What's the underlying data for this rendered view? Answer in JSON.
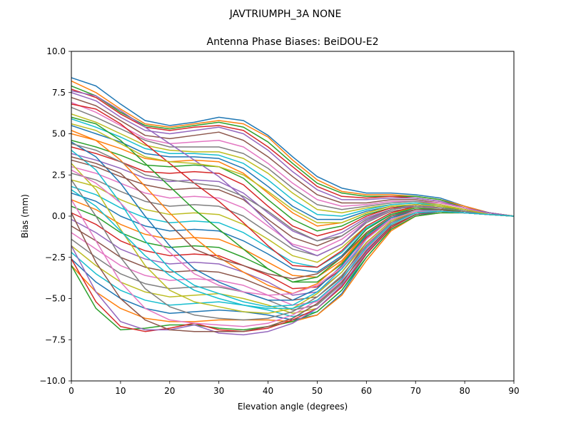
{
  "suptitle": "JAVTRIUMPH_3A   NONE",
  "chart_data": {
    "type": "line",
    "title": "Antenna Phase Biases: BeiDOU-E2",
    "xlabel": "Elevation angle (degrees)",
    "ylabel": "Bias (mm)",
    "xlim": [
      0,
      90
    ],
    "ylim": [
      -10,
      10
    ],
    "xticks": [
      0,
      10,
      20,
      30,
      40,
      50,
      60,
      70,
      80,
      90
    ],
    "yticks": [
      -10.0,
      -7.5,
      -5.0,
      -2.5,
      0.0,
      2.5,
      5.0,
      7.5,
      10.0
    ],
    "xtick_labels": [
      "0",
      "10",
      "20",
      "30",
      "40",
      "50",
      "60",
      "70",
      "80",
      "90"
    ],
    "ytick_labels": [
      "−10.0",
      "−7.5",
      "−5.0",
      "−2.5",
      "0.0",
      "2.5",
      "5.0",
      "7.5",
      "10.0"
    ],
    "grid": false,
    "colors": [
      "#1f77b4",
      "#ff7f0e",
      "#2ca02c",
      "#d62728",
      "#9467bd",
      "#8c564b",
      "#e377c2",
      "#7f7f7f",
      "#bcbd22",
      "#17becf"
    ],
    "x": [
      0,
      5,
      10,
      15,
      20,
      25,
      30,
      35,
      40,
      45,
      50,
      55,
      60,
      65,
      70,
      75,
      80,
      85,
      90
    ],
    "series": [
      {
        "values": [
          8.4,
          7.9,
          6.8,
          5.8,
          5.5,
          5.7,
          6.0,
          5.8,
          4.9,
          3.6,
          2.4,
          1.7,
          1.4,
          1.4,
          1.3,
          1.1,
          0.6,
          0.2,
          0.0
        ]
      },
      {
        "values": [
          8.2,
          7.5,
          6.5,
          5.6,
          5.4,
          5.6,
          5.8,
          5.6,
          4.8,
          3.4,
          2.2,
          1.5,
          1.3,
          1.3,
          1.2,
          1.0,
          0.6,
          0.2,
          0.0
        ]
      },
      {
        "values": [
          7.9,
          7.3,
          6.3,
          5.5,
          5.3,
          5.5,
          5.7,
          5.4,
          4.5,
          3.2,
          2.0,
          1.4,
          1.2,
          1.2,
          1.2,
          1.0,
          0.5,
          0.2,
          0.0
        ]
      },
      {
        "values": [
          7.7,
          7.2,
          6.2,
          5.4,
          5.2,
          5.4,
          5.5,
          5.2,
          4.2,
          3.0,
          1.8,
          1.2,
          1.1,
          1.2,
          1.1,
          0.9,
          0.5,
          0.2,
          0.0
        ]
      },
      {
        "values": [
          7.5,
          7.0,
          6.0,
          5.2,
          5.0,
          5.2,
          5.4,
          5.0,
          4.0,
          2.7,
          1.6,
          1.0,
          1.0,
          1.1,
          1.1,
          0.9,
          0.5,
          0.2,
          0.0
        ]
      },
      {
        "values": [
          7.2,
          6.7,
          5.8,
          4.9,
          4.7,
          4.9,
          5.1,
          4.6,
          3.6,
          2.4,
          1.3,
          0.8,
          0.8,
          1.0,
          1.0,
          0.8,
          0.5,
          0.1,
          0.0
        ]
      },
      {
        "values": [
          6.9,
          6.3,
          5.5,
          4.7,
          4.4,
          4.5,
          4.6,
          4.2,
          3.2,
          2.0,
          1.0,
          0.6,
          0.7,
          0.9,
          0.9,
          0.8,
          0.5,
          0.1,
          0.0
        ]
      },
      {
        "values": [
          6.6,
          6.0,
          5.3,
          4.6,
          4.2,
          4.2,
          4.2,
          3.8,
          2.9,
          1.7,
          0.7,
          0.4,
          0.6,
          0.8,
          0.9,
          0.7,
          0.4,
          0.1,
          0.0
        ]
      },
      {
        "values": [
          6.2,
          5.7,
          5.0,
          4.3,
          4.0,
          3.9,
          3.9,
          3.5,
          2.6,
          1.4,
          0.4,
          0.2,
          0.5,
          0.7,
          0.8,
          0.7,
          0.4,
          0.1,
          0.0
        ]
      },
      {
        "values": [
          5.9,
          5.4,
          4.8,
          4.1,
          3.8,
          3.8,
          3.7,
          3.2,
          2.2,
          1.0,
          0.1,
          0.0,
          0.4,
          0.7,
          0.8,
          0.6,
          0.4,
          0.1,
          0.0
        ]
      },
      {
        "values": [
          5.5,
          5.0,
          4.5,
          3.8,
          3.6,
          3.6,
          3.5,
          2.9,
          1.8,
          0.6,
          -0.2,
          -0.2,
          0.3,
          0.6,
          0.7,
          0.6,
          0.4,
          0.1,
          0.0
        ]
      },
      {
        "values": [
          5.0,
          4.6,
          4.1,
          3.5,
          3.3,
          3.4,
          3.3,
          2.6,
          1.4,
          0.2,
          -0.6,
          -0.4,
          0.2,
          0.6,
          0.7,
          0.6,
          0.4,
          0.1,
          0.0
        ]
      },
      {
        "values": [
          4.6,
          4.2,
          3.7,
          3.1,
          3.0,
          3.1,
          3.0,
          2.3,
          1.0,
          -0.2,
          -0.9,
          -0.6,
          0.1,
          0.5,
          0.7,
          0.6,
          0.3,
          0.1,
          0.0
        ]
      },
      {
        "values": [
          4.2,
          3.8,
          3.3,
          2.7,
          2.6,
          2.7,
          2.6,
          1.9,
          0.6,
          -0.6,
          -1.2,
          -0.8,
          0.0,
          0.5,
          0.6,
          0.5,
          0.3,
          0.1,
          0.0
        ]
      },
      {
        "values": [
          3.8,
          3.4,
          2.9,
          2.3,
          2.1,
          2.2,
          2.1,
          1.4,
          0.2,
          -0.9,
          -1.5,
          -1.0,
          -0.1,
          0.4,
          0.6,
          0.5,
          0.3,
          0.1,
          0.0
        ]
      },
      {
        "values": [
          3.4,
          3.0,
          2.4,
          1.9,
          1.6,
          1.7,
          1.6,
          1.0,
          -0.2,
          -1.3,
          -1.8,
          -1.2,
          -0.2,
          0.4,
          0.6,
          0.5,
          0.3,
          0.1,
          0.0
        ]
      },
      {
        "values": [
          3.0,
          2.6,
          2.0,
          1.4,
          1.1,
          1.2,
          1.1,
          0.5,
          -0.6,
          -1.7,
          -2.1,
          -1.4,
          -0.3,
          0.3,
          0.5,
          0.5,
          0.3,
          0.1,
          0.0
        ]
      },
      {
        "values": [
          2.6,
          2.2,
          1.5,
          0.9,
          0.6,
          0.7,
          0.6,
          0.0,
          -1.0,
          -2.0,
          -2.4,
          -1.7,
          -0.4,
          0.3,
          0.5,
          0.4,
          0.3,
          0.1,
          0.0
        ]
      },
      {
        "values": [
          2.2,
          1.8,
          1.0,
          0.4,
          0.1,
          0.2,
          0.1,
          -0.5,
          -1.4,
          -2.4,
          -2.8,
          -1.9,
          -0.6,
          0.2,
          0.5,
          0.4,
          0.3,
          0.1,
          0.0
        ]
      },
      {
        "values": [
          1.8,
          1.3,
          0.5,
          -0.1,
          -0.4,
          -0.3,
          -0.4,
          -1.0,
          -1.9,
          -2.8,
          -3.1,
          -2.2,
          -0.7,
          0.1,
          0.4,
          0.4,
          0.3,
          0.1,
          0.0
        ]
      },
      {
        "values": [
          1.4,
          0.9,
          0.0,
          -0.6,
          -0.9,
          -0.8,
          -0.9,
          -1.5,
          -2.3,
          -3.2,
          -3.4,
          -2.4,
          -0.8,
          0.1,
          0.4,
          0.4,
          0.3,
          0.1,
          0.0
        ]
      },
      {
        "values": [
          1.0,
          0.4,
          -0.5,
          -1.1,
          -1.4,
          -1.3,
          -1.4,
          -2.0,
          -2.8,
          -3.6,
          -3.7,
          -2.7,
          -1.0,
          0.0,
          0.4,
          0.4,
          0.2,
          0.1,
          0.0
        ]
      },
      {
        "values": [
          0.6,
          0.0,
          -1.0,
          -1.6,
          -1.9,
          -1.8,
          -1.9,
          -2.5,
          -3.2,
          -4.0,
          -4.0,
          -2.9,
          -1.1,
          -0.1,
          0.3,
          0.3,
          0.2,
          0.1,
          0.0
        ]
      },
      {
        "values": [
          0.2,
          -0.5,
          -1.5,
          -2.1,
          -2.4,
          -2.3,
          -2.4,
          -3.0,
          -3.6,
          -4.4,
          -4.3,
          -3.2,
          -1.3,
          -0.2,
          0.3,
          0.3,
          0.2,
          0.1,
          0.0
        ]
      },
      {
        "values": [
          -0.2,
          -1.0,
          -2.0,
          -2.6,
          -2.9,
          -2.8,
          -2.9,
          -3.4,
          -4.0,
          -4.8,
          -4.6,
          -3.4,
          -1.4,
          -0.2,
          0.3,
          0.3,
          0.2,
          0.1,
          0.0
        ]
      },
      {
        "values": [
          -0.6,
          -1.5,
          -2.5,
          -3.1,
          -3.4,
          -3.3,
          -3.4,
          -3.8,
          -4.4,
          -5.1,
          -4.9,
          -3.7,
          -1.6,
          -0.3,
          0.2,
          0.3,
          0.2,
          0.1,
          0.0
        ]
      },
      {
        "values": [
          -1.0,
          -2.0,
          -3.0,
          -3.6,
          -3.9,
          -3.8,
          -3.9,
          -4.2,
          -4.8,
          -5.4,
          -5.2,
          -3.9,
          -1.7,
          -0.4,
          0.2,
          0.3,
          0.2,
          0.1,
          0.0
        ]
      },
      {
        "values": [
          -1.4,
          -2.5,
          -3.5,
          -4.1,
          -4.4,
          -4.3,
          -4.3,
          -4.6,
          -5.1,
          -5.7,
          -5.4,
          -4.1,
          -1.9,
          -0.5,
          0.2,
          0.3,
          0.2,
          0.1,
          0.0
        ]
      },
      {
        "values": [
          -1.8,
          -3.0,
          -4.0,
          -4.6,
          -4.9,
          -4.8,
          -4.7,
          -5.0,
          -5.4,
          -5.9,
          -5.6,
          -4.3,
          -2.1,
          -0.6,
          0.1,
          0.3,
          0.2,
          0.1,
          0.0
        ]
      },
      {
        "values": [
          -2.2,
          -3.5,
          -4.5,
          -5.1,
          -5.4,
          -5.3,
          -5.2,
          -5.4,
          -5.7,
          -6.1,
          -5.8,
          -4.5,
          -2.3,
          -0.7,
          0.1,
          0.3,
          0.2,
          0.1,
          0.0
        ]
      },
      {
        "values": [
          -2.6,
          -4.0,
          -5.0,
          -5.6,
          -5.9,
          -5.8,
          -5.7,
          -5.8,
          -6.0,
          -6.3,
          -6.0,
          -4.7,
          -2.5,
          -0.8,
          0.0,
          0.3,
          0.2,
          0.1,
          0.0
        ]
      },
      {
        "values": [
          -3.0,
          -4.6,
          -5.6,
          -6.2,
          -6.4,
          -6.4,
          -6.3,
          -6.3,
          -6.3,
          -6.4,
          -6.0,
          -4.8,
          -2.7,
          -0.9,
          0.0,
          0.2,
          0.2,
          0.1,
          0.0
        ]
      },
      {
        "values": [
          -3.0,
          -5.6,
          -6.9,
          -6.8,
          -6.6,
          -6.6,
          -6.8,
          -6.9,
          -6.7,
          -6.4,
          -5.8,
          -4.5,
          -2.5,
          -0.8,
          0.0,
          0.2,
          0.2,
          0.1,
          0.0
        ]
      },
      {
        "values": [
          -2.6,
          -5.2,
          -6.7,
          -7.0,
          -6.8,
          -6.5,
          -6.9,
          -7.0,
          -6.8,
          -6.3,
          -5.6,
          -4.3,
          -2.3,
          -0.7,
          0.1,
          0.3,
          0.2,
          0.1,
          0.0
        ]
      },
      {
        "values": [
          -1.8,
          -4.6,
          -6.4,
          -6.9,
          -6.9,
          -6.6,
          -7.1,
          -7.2,
          -7.0,
          -6.5,
          -5.6,
          -4.2,
          -2.2,
          -0.6,
          0.1,
          0.3,
          0.2,
          0.1,
          0.0
        ]
      },
      {
        "values": [
          0.2,
          -2.8,
          -5.0,
          -6.3,
          -6.9,
          -7.0,
          -7.0,
          -7.0,
          -6.7,
          -6.2,
          -5.3,
          -4.0,
          -2.1,
          -0.6,
          0.1,
          0.3,
          0.2,
          0.1,
          0.0
        ]
      },
      {
        "values": [
          1.0,
          -1.5,
          -4.0,
          -5.6,
          -6.3,
          -6.5,
          -6.6,
          -6.7,
          -6.5,
          -6.0,
          -5.1,
          -3.8,
          -2.0,
          -0.5,
          0.2,
          0.3,
          0.2,
          0.1,
          0.0
        ]
      },
      {
        "values": [
          2.2,
          0.0,
          -2.5,
          -4.4,
          -5.5,
          -6.0,
          -6.2,
          -6.3,
          -6.2,
          -5.8,
          -4.9,
          -3.6,
          -1.8,
          -0.4,
          0.2,
          0.3,
          0.2,
          0.1,
          0.0
        ]
      },
      {
        "values": [
          3.2,
          1.6,
          -0.8,
          -3.0,
          -4.5,
          -5.2,
          -5.5,
          -5.8,
          -5.9,
          -5.6,
          -4.7,
          -3.4,
          -1.6,
          -0.3,
          0.3,
          0.4,
          0.2,
          0.1,
          0.0
        ]
      },
      {
        "values": [
          4.0,
          2.8,
          0.8,
          -1.5,
          -3.2,
          -4.2,
          -4.7,
          -5.2,
          -5.5,
          -5.4,
          -4.6,
          -3.2,
          -1.4,
          -0.2,
          0.3,
          0.4,
          0.2,
          0.1,
          0.0
        ]
      },
      {
        "values": [
          4.5,
          3.6,
          2.0,
          0.0,
          -1.8,
          -3.2,
          -4.0,
          -4.6,
          -5.1,
          -5.1,
          -4.4,
          -3.0,
          -1.2,
          -0.1,
          0.4,
          0.4,
          0.2,
          0.1,
          0.0
        ]
      },
      {
        "values": [
          5.2,
          4.6,
          3.4,
          1.8,
          0.2,
          -1.3,
          -2.5,
          -3.4,
          -4.2,
          -4.7,
          -4.1,
          -2.8,
          -1.0,
          0.0,
          0.4,
          0.4,
          0.3,
          0.1,
          0.0
        ]
      },
      {
        "values": [
          6.0,
          5.6,
          4.6,
          3.2,
          1.8,
          0.4,
          -0.8,
          -2.0,
          -3.2,
          -4.0,
          -3.7,
          -2.5,
          -0.8,
          0.1,
          0.5,
          0.4,
          0.3,
          0.1,
          0.0
        ]
      },
      {
        "values": [
          6.8,
          6.5,
          5.6,
          4.4,
          3.2,
          2.0,
          0.9,
          -0.4,
          -1.8,
          -3.0,
          -3.1,
          -2.1,
          -0.6,
          0.2,
          0.6,
          0.5,
          0.3,
          0.1,
          0.0
        ]
      },
      {
        "values": [
          7.6,
          7.3,
          6.4,
          5.4,
          4.4,
          3.4,
          2.4,
          1.1,
          -0.4,
          -1.8,
          -2.4,
          -1.7,
          -0.3,
          0.4,
          0.7,
          0.5,
          0.3,
          0.1,
          0.0
        ]
      },
      {
        "values": [
          3.6,
          3.2,
          2.6,
          1.2,
          -0.5,
          -2.0,
          -2.6,
          -3.0,
          -3.5,
          -3.8,
          -3.5,
          -2.5,
          -1.0,
          0.0,
          0.4,
          0.4,
          0.2,
          0.1,
          0.0
        ]
      },
      {
        "values": [
          2.8,
          2.0,
          0.8,
          -0.8,
          -2.2,
          -3.5,
          -4.2,
          -4.6,
          -4.8,
          -4.7,
          -4.2,
          -3.1,
          -1.4,
          -0.2,
          0.3,
          0.3,
          0.2,
          0.1,
          0.0
        ]
      },
      {
        "values": [
          4.4,
          4.0,
          3.3,
          2.5,
          2.2,
          2.0,
          1.8,
          1.2,
          0.3,
          -0.8,
          -1.5,
          -1.2,
          -0.2,
          0.4,
          0.6,
          0.5,
          0.3,
          0.1,
          0.0
        ]
      },
      {
        "values": [
          5.6,
          5.2,
          4.4,
          3.6,
          3.3,
          3.2,
          3.0,
          2.5,
          1.5,
          0.4,
          -0.4,
          -0.4,
          0.2,
          0.6,
          0.7,
          0.6,
          0.4,
          0.1,
          0.0
        ]
      },
      {
        "values": [
          1.6,
          0.6,
          -0.9,
          -2.4,
          -3.6,
          -4.5,
          -5.0,
          -5.4,
          -5.6,
          -5.6,
          -5.1,
          -3.8,
          -1.9,
          -0.5,
          0.2,
          0.3,
          0.2,
          0.1,
          0.0
        ]
      }
    ]
  }
}
